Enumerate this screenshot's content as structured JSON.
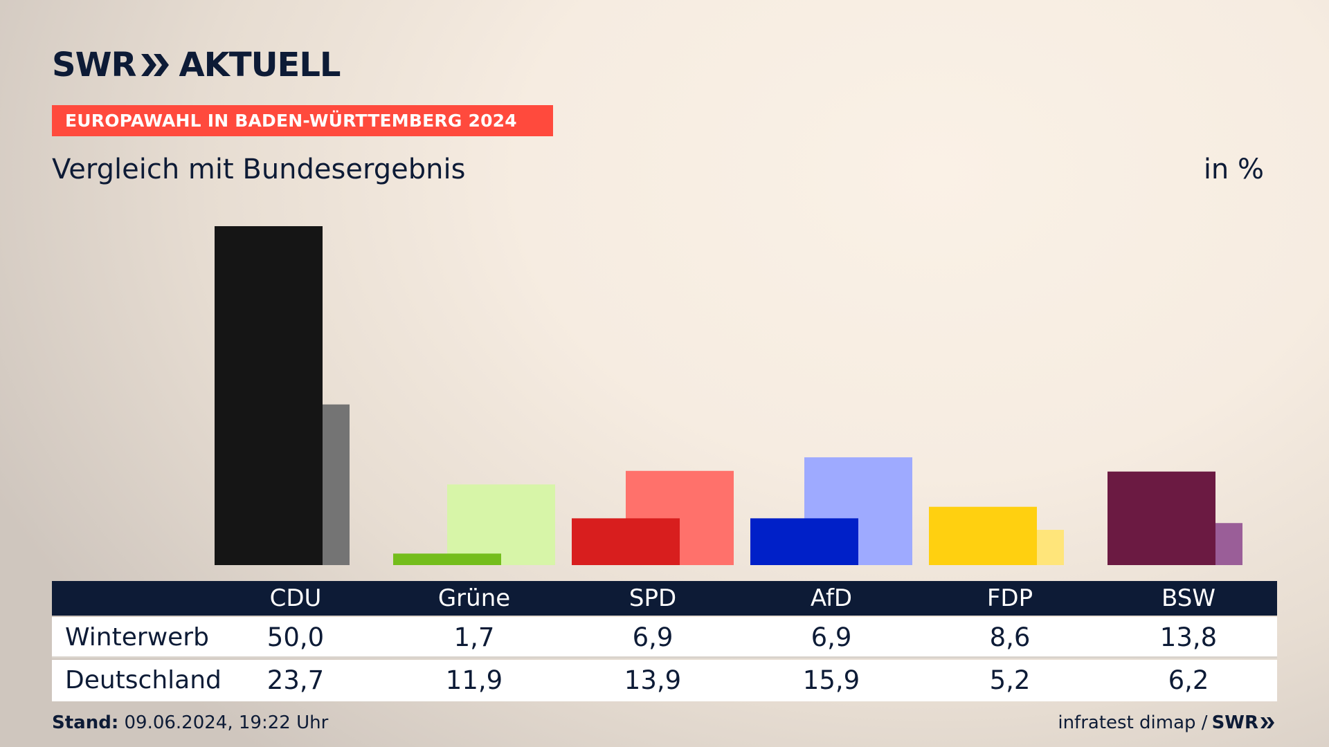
{
  "brand": {
    "name": "SWR",
    "product": "AKTUELL"
  },
  "header": {
    "badge": "EUROPAWAHL IN BADEN-WÜRTTEMBERG 2024",
    "subtitle": "Vergleich mit Bundesergebnis",
    "unit": "in %"
  },
  "table": {
    "rows": [
      {
        "label": "Winterwerb",
        "values": [
          "50,0",
          "1,7",
          "6,9",
          "6,9",
          "8,6",
          "13,8"
        ]
      },
      {
        "label": "Deutschland",
        "values": [
          "23,7",
          "11,9",
          "13,9",
          "15,9",
          "5,2",
          "6,2"
        ]
      }
    ]
  },
  "footer": {
    "stand_label": "Stand:",
    "stand_value": "09.06.2024, 19:22 Uhr",
    "source": "infratest dimap /",
    "source_brand": "SWR"
  },
  "chart_data": {
    "type": "bar",
    "categories": [
      "CDU",
      "Grüne",
      "SPD",
      "AfD",
      "FDP",
      "BSW"
    ],
    "series": [
      {
        "name": "Winterwerb",
        "values": [
          50.0,
          1.7,
          6.9,
          6.9,
          8.6,
          13.8
        ]
      },
      {
        "name": "Deutschland",
        "values": [
          23.7,
          11.9,
          13.9,
          15.9,
          5.2,
          6.2
        ]
      }
    ],
    "colors_primary": [
      "#151515",
      "#74bd1c",
      "#d81e1e",
      "#0020c8",
      "#ffd010",
      "#6b1a42"
    ],
    "colors_secondary": [
      "#747474",
      "#d7f5a8",
      "#ff716b",
      "#9eaaff",
      "#ffe57a",
      "#9a5e98"
    ],
    "ylim": [
      0,
      50
    ],
    "grid": false
  }
}
